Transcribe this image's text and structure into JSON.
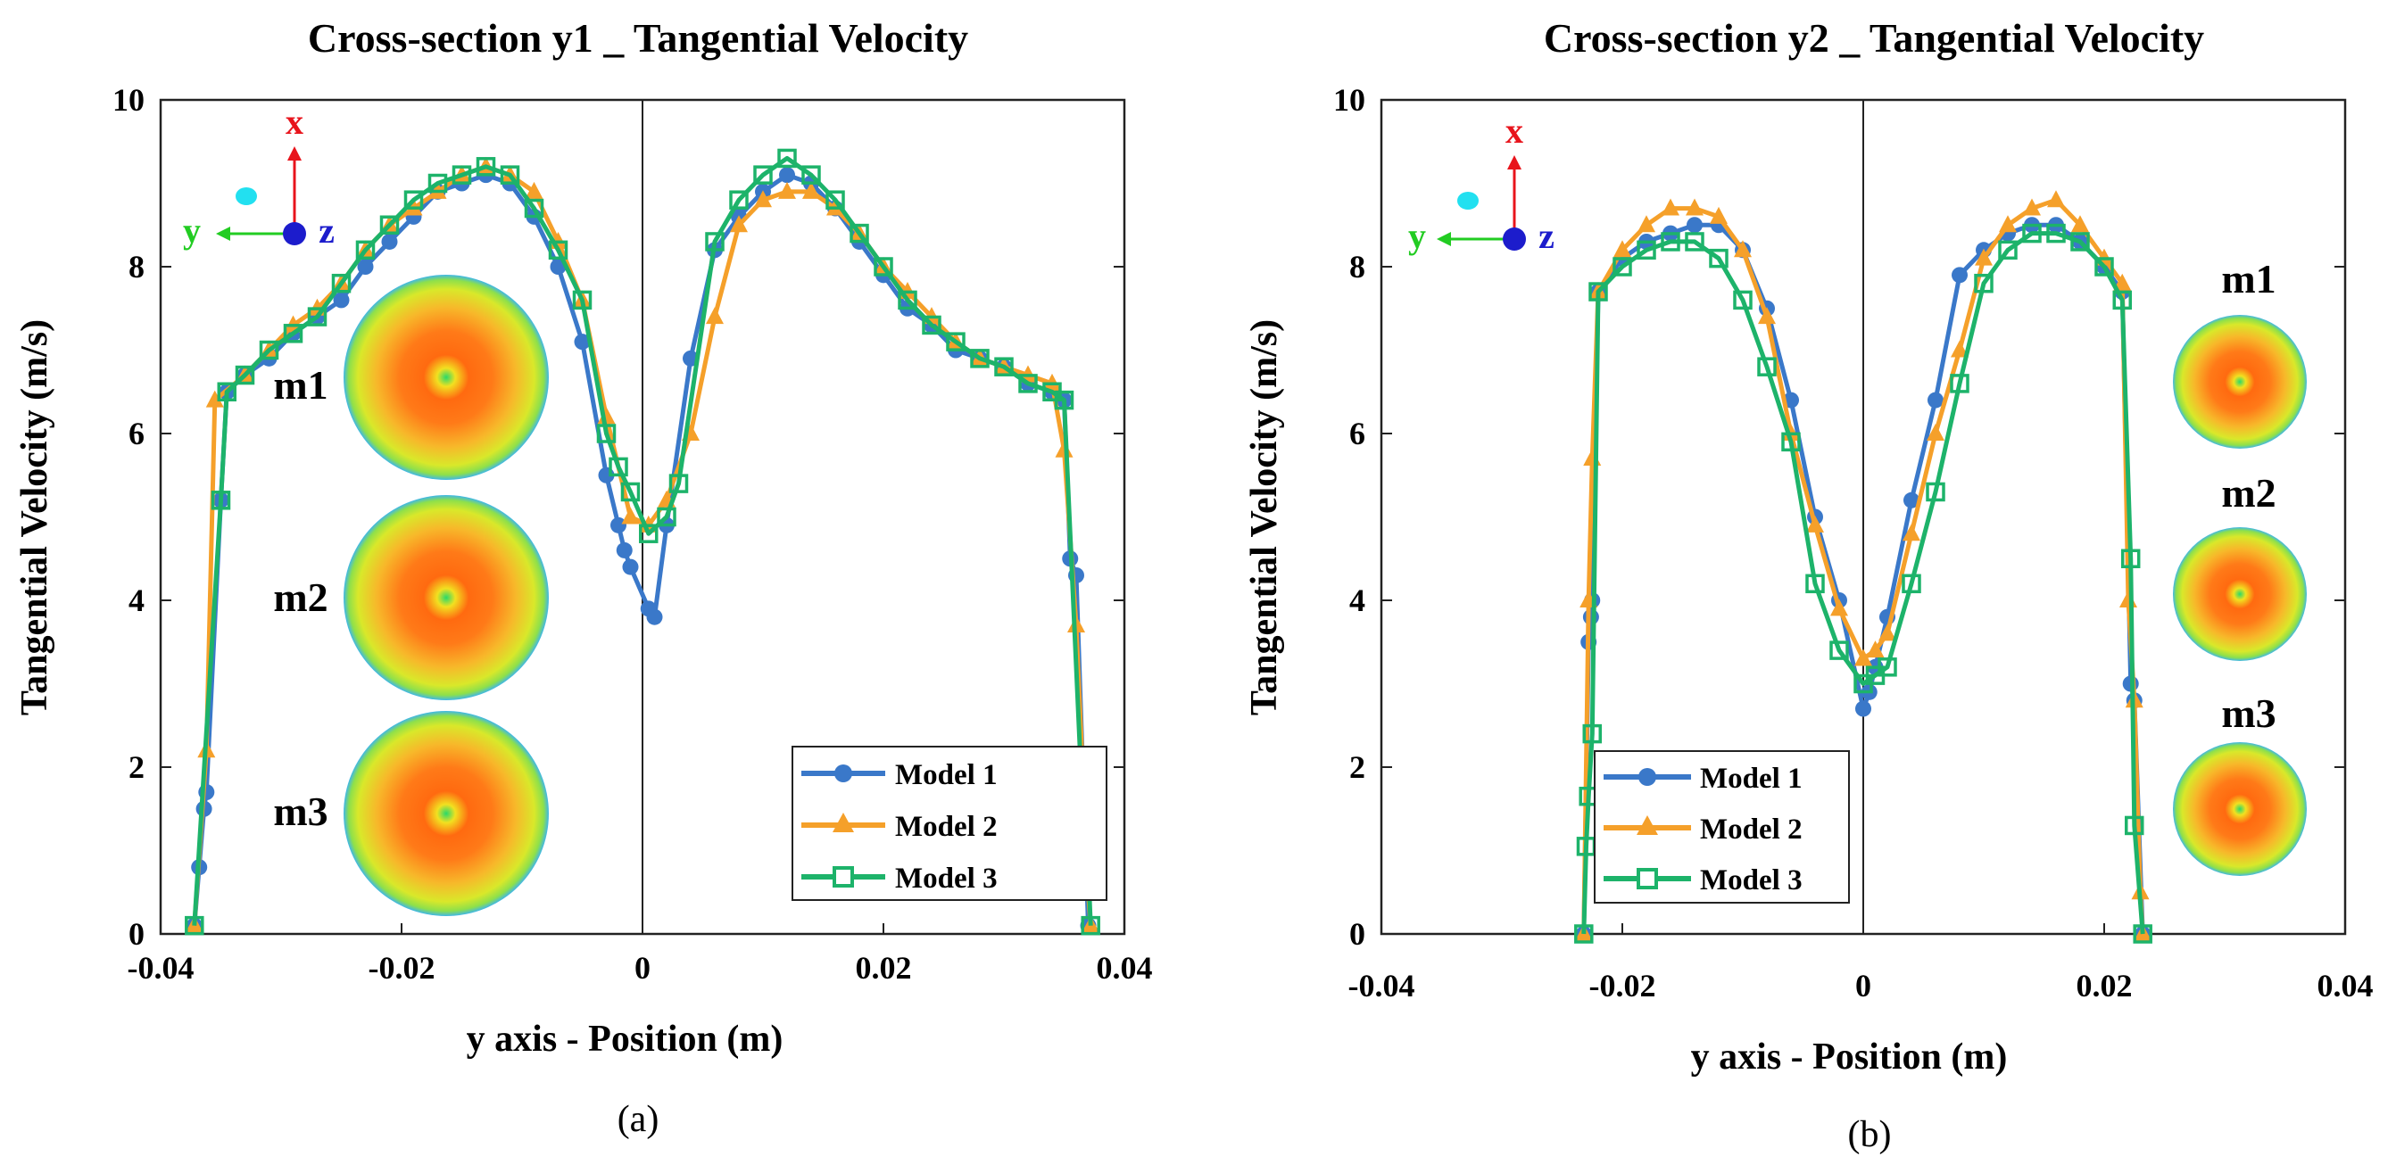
{
  "chart_data": [
    {
      "type": "line",
      "panel_label": "(a)",
      "title": "Cross-section y1 _ Tangential Velocity",
      "xlabel": "y axis - Position (m)",
      "ylabel": "Tangential Velocity (m/s)",
      "xlim": [
        -0.04,
        0.04
      ],
      "ylim": [
        0,
        10
      ],
      "xticks": [
        -0.04,
        -0.02,
        0,
        0.02,
        0.04
      ],
      "xtick_labels": [
        "-0.04",
        "-0.02",
        "0",
        "0.02",
        "0.04"
      ],
      "yticks": [
        0,
        2,
        4,
        6,
        8,
        10
      ],
      "ytick_labels": [
        "0",
        "2",
        "4",
        "6",
        "8",
        "10"
      ],
      "grid": false,
      "legend_position": "bottom-right",
      "triad": {
        "up": "x",
        "left": "y",
        "out": "z"
      },
      "insets": [
        "m1",
        "m2",
        "m3"
      ],
      "series": [
        {
          "name": "Model 1",
          "color": "#3a78c9",
          "marker": "circle",
          "points": [
            [
              -0.0372,
              0.1
            ],
            [
              -0.0368,
              0.8
            ],
            [
              -0.0364,
              1.5
            ],
            [
              -0.0362,
              1.7
            ],
            [
              -0.035,
              5.2
            ],
            [
              -0.0345,
              6.5
            ],
            [
              -0.033,
              6.7
            ],
            [
              -0.031,
              6.9
            ],
            [
              -0.029,
              7.2
            ],
            [
              -0.027,
              7.4
            ],
            [
              -0.025,
              7.6
            ],
            [
              -0.023,
              8.0
            ],
            [
              -0.021,
              8.3
            ],
            [
              -0.019,
              8.6
            ],
            [
              -0.017,
              8.9
            ],
            [
              -0.015,
              9.0
            ],
            [
              -0.013,
              9.1
            ],
            [
              -0.011,
              9.0
            ],
            [
              -0.009,
              8.6
            ],
            [
              -0.007,
              8.0
            ],
            [
              -0.005,
              7.1
            ],
            [
              -0.003,
              5.5
            ],
            [
              -0.002,
              4.9
            ],
            [
              -0.0015,
              4.6
            ],
            [
              -0.001,
              4.4
            ],
            [
              0.0005,
              3.9
            ],
            [
              0.001,
              3.8
            ],
            [
              0.002,
              4.9
            ],
            [
              0.004,
              6.9
            ],
            [
              0.006,
              8.2
            ],
            [
              0.008,
              8.6
            ],
            [
              0.01,
              8.9
            ],
            [
              0.012,
              9.1
            ],
            [
              0.014,
              9.0
            ],
            [
              0.016,
              8.7
            ],
            [
              0.018,
              8.3
            ],
            [
              0.02,
              7.9
            ],
            [
              0.022,
              7.5
            ],
            [
              0.024,
              7.3
            ],
            [
              0.026,
              7.0
            ],
            [
              0.028,
              6.9
            ],
            [
              0.03,
              6.8
            ],
            [
              0.032,
              6.6
            ],
            [
              0.034,
              6.5
            ],
            [
              0.035,
              6.4
            ],
            [
              0.0355,
              4.5
            ],
            [
              0.036,
              4.3
            ],
            [
              0.037,
              0.1
            ]
          ]
        },
        {
          "name": "Model 2",
          "color": "#f5a02a",
          "marker": "triangle",
          "points": [
            [
              -0.0372,
              0.1
            ],
            [
              -0.0362,
              2.2
            ],
            [
              -0.0355,
              6.4
            ],
            [
              -0.033,
              6.7
            ],
            [
              -0.031,
              7.0
            ],
            [
              -0.029,
              7.3
            ],
            [
              -0.027,
              7.5
            ],
            [
              -0.025,
              7.8
            ],
            [
              -0.023,
              8.2
            ],
            [
              -0.021,
              8.5
            ],
            [
              -0.019,
              8.7
            ],
            [
              -0.017,
              8.9
            ],
            [
              -0.015,
              9.1
            ],
            [
              -0.013,
              9.2
            ],
            [
              -0.011,
              9.1
            ],
            [
              -0.009,
              8.9
            ],
            [
              -0.007,
              8.3
            ],
            [
              -0.005,
              7.6
            ],
            [
              -0.003,
              6.2
            ],
            [
              -0.001,
              5.0
            ],
            [
              0.0005,
              4.9
            ],
            [
              0.002,
              5.2
            ],
            [
              0.004,
              6.0
            ],
            [
              0.006,
              7.4
            ],
            [
              0.008,
              8.5
            ],
            [
              0.01,
              8.8
            ],
            [
              0.012,
              8.9
            ],
            [
              0.014,
              8.9
            ],
            [
              0.016,
              8.7
            ],
            [
              0.018,
              8.4
            ],
            [
              0.02,
              8.0
            ],
            [
              0.022,
              7.7
            ],
            [
              0.024,
              7.4
            ],
            [
              0.026,
              7.1
            ],
            [
              0.028,
              6.9
            ],
            [
              0.03,
              6.8
            ],
            [
              0.032,
              6.7
            ],
            [
              0.034,
              6.6
            ],
            [
              0.035,
              5.8
            ],
            [
              0.036,
              3.7
            ],
            [
              0.037,
              0.5
            ],
            [
              0.0372,
              0.1
            ]
          ]
        },
        {
          "name": "Model 3",
          "color": "#1db36a",
          "marker": "square",
          "points": [
            [
              -0.0372,
              0.1
            ],
            [
              -0.035,
              5.2
            ],
            [
              -0.0345,
              6.5
            ],
            [
              -0.033,
              6.7
            ],
            [
              -0.031,
              7.0
            ],
            [
              -0.029,
              7.2
            ],
            [
              -0.027,
              7.4
            ],
            [
              -0.025,
              7.8
            ],
            [
              -0.023,
              8.2
            ],
            [
              -0.021,
              8.5
            ],
            [
              -0.019,
              8.8
            ],
            [
              -0.017,
              9.0
            ],
            [
              -0.015,
              9.1
            ],
            [
              -0.013,
              9.2
            ],
            [
              -0.011,
              9.1
            ],
            [
              -0.009,
              8.7
            ],
            [
              -0.007,
              8.2
            ],
            [
              -0.005,
              7.6
            ],
            [
              -0.003,
              6.0
            ],
            [
              -0.002,
              5.6
            ],
            [
              -0.001,
              5.3
            ],
            [
              0.0005,
              4.8
            ],
            [
              0.002,
              5.0
            ],
            [
              0.003,
              5.4
            ],
            [
              0.006,
              8.3
            ],
            [
              0.008,
              8.8
            ],
            [
              0.01,
              9.1
            ],
            [
              0.012,
              9.3
            ],
            [
              0.014,
              9.1
            ],
            [
              0.016,
              8.8
            ],
            [
              0.018,
              8.4
            ],
            [
              0.02,
              8.0
            ],
            [
              0.022,
              7.6
            ],
            [
              0.024,
              7.3
            ],
            [
              0.026,
              7.1
            ],
            [
              0.028,
              6.9
            ],
            [
              0.03,
              6.8
            ],
            [
              0.032,
              6.6
            ],
            [
              0.034,
              6.5
            ],
            [
              0.035,
              6.4
            ],
            [
              0.0365,
              1.6
            ],
            [
              0.037,
              0.8
            ],
            [
              0.0372,
              0.1
            ]
          ]
        }
      ]
    },
    {
      "type": "line",
      "panel_label": "(b)",
      "title": "Cross-section y2 _ Tangential Velocity",
      "xlabel": "y axis - Position (m)",
      "ylabel": "Tangential Velocity (m/s)",
      "xlim": [
        -0.04,
        0.04
      ],
      "ylim": [
        0,
        10
      ],
      "xticks": [
        -0.04,
        -0.02,
        0,
        0.02,
        0.04
      ],
      "xtick_labels": [
        "-0.04",
        "-0.02",
        "0",
        "0.02",
        "0.04"
      ],
      "yticks": [
        0,
        2,
        4,
        6,
        8,
        10
      ],
      "ytick_labels": [
        "0",
        "2",
        "4",
        "6",
        "8",
        "10"
      ],
      "grid": false,
      "legend_position": "bottom-left",
      "triad": {
        "up": "x",
        "left": "y",
        "out": "z"
      },
      "insets": [
        "m1",
        "m2",
        "m3"
      ],
      "series": [
        {
          "name": "Model 1",
          "color": "#3a78c9",
          "marker": "circle",
          "points": [
            [
              -0.0232,
              0.0
            ],
            [
              -0.0228,
              3.5
            ],
            [
              -0.0226,
              3.8
            ],
            [
              -0.0225,
              4.0
            ],
            [
              -0.022,
              7.7
            ],
            [
              -0.02,
              8.1
            ],
            [
              -0.018,
              8.3
            ],
            [
              -0.016,
              8.4
            ],
            [
              -0.014,
              8.5
            ],
            [
              -0.012,
              8.5
            ],
            [
              -0.01,
              8.2
            ],
            [
              -0.008,
              7.5
            ],
            [
              -0.006,
              6.4
            ],
            [
              -0.004,
              5.0
            ],
            [
              -0.002,
              4.0
            ],
            [
              0.0,
              2.7
            ],
            [
              0.0005,
              2.9
            ],
            [
              0.001,
              3.2
            ],
            [
              0.002,
              3.8
            ],
            [
              0.004,
              5.2
            ],
            [
              0.006,
              6.4
            ],
            [
              0.008,
              7.9
            ],
            [
              0.01,
              8.2
            ],
            [
              0.012,
              8.4
            ],
            [
              0.014,
              8.5
            ],
            [
              0.016,
              8.5
            ],
            [
              0.018,
              8.3
            ],
            [
              0.02,
              8.0
            ],
            [
              0.0215,
              7.7
            ],
            [
              0.0222,
              3.0
            ],
            [
              0.0225,
              2.8
            ],
            [
              0.0232,
              0.0
            ]
          ]
        },
        {
          "name": "Model 2",
          "color": "#f5a02a",
          "marker": "triangle",
          "points": [
            [
              -0.0232,
              0.0
            ],
            [
              -0.0228,
              4.0
            ],
            [
              -0.0225,
              5.7
            ],
            [
              -0.022,
              7.7
            ],
            [
              -0.02,
              8.2
            ],
            [
              -0.018,
              8.5
            ],
            [
              -0.016,
              8.7
            ],
            [
              -0.014,
              8.7
            ],
            [
              -0.012,
              8.6
            ],
            [
              -0.01,
              8.2
            ],
            [
              -0.008,
              7.4
            ],
            [
              -0.006,
              6.0
            ],
            [
              -0.004,
              4.9
            ],
            [
              -0.002,
              3.9
            ],
            [
              0.0,
              3.3
            ],
            [
              0.001,
              3.4
            ],
            [
              0.002,
              3.6
            ],
            [
              0.004,
              4.8
            ],
            [
              0.006,
              6.0
            ],
            [
              0.008,
              7.0
            ],
            [
              0.01,
              8.1
            ],
            [
              0.012,
              8.5
            ],
            [
              0.014,
              8.7
            ],
            [
              0.016,
              8.8
            ],
            [
              0.018,
              8.5
            ],
            [
              0.02,
              8.1
            ],
            [
              0.0215,
              7.8
            ],
            [
              0.022,
              4.0
            ],
            [
              0.0225,
              2.8
            ],
            [
              0.023,
              0.5
            ],
            [
              0.0232,
              0.0
            ]
          ]
        },
        {
          "name": "Model 3",
          "color": "#1db36a",
          "marker": "square",
          "points": [
            [
              -0.0232,
              0.0
            ],
            [
              -0.023,
              1.05
            ],
            [
              -0.0228,
              1.65
            ],
            [
              -0.0225,
              2.4
            ],
            [
              -0.022,
              7.7
            ],
            [
              -0.02,
              8.0
            ],
            [
              -0.018,
              8.2
            ],
            [
              -0.016,
              8.3
            ],
            [
              -0.014,
              8.3
            ],
            [
              -0.012,
              8.1
            ],
            [
              -0.01,
              7.6
            ],
            [
              -0.008,
              6.8
            ],
            [
              -0.006,
              5.9
            ],
            [
              -0.004,
              4.2
            ],
            [
              -0.002,
              3.4
            ],
            [
              0.0,
              3.0
            ],
            [
              0.001,
              3.1
            ],
            [
              0.002,
              3.2
            ],
            [
              0.004,
              4.2
            ],
            [
              0.006,
              5.3
            ],
            [
              0.008,
              6.6
            ],
            [
              0.01,
              7.8
            ],
            [
              0.012,
              8.2
            ],
            [
              0.014,
              8.4
            ],
            [
              0.016,
              8.4
            ],
            [
              0.018,
              8.3
            ],
            [
              0.02,
              8.0
            ],
            [
              0.0215,
              7.6
            ],
            [
              0.0222,
              4.5
            ],
            [
              0.0225,
              1.3
            ],
            [
              0.0232,
              0.0
            ]
          ]
        }
      ]
    }
  ]
}
